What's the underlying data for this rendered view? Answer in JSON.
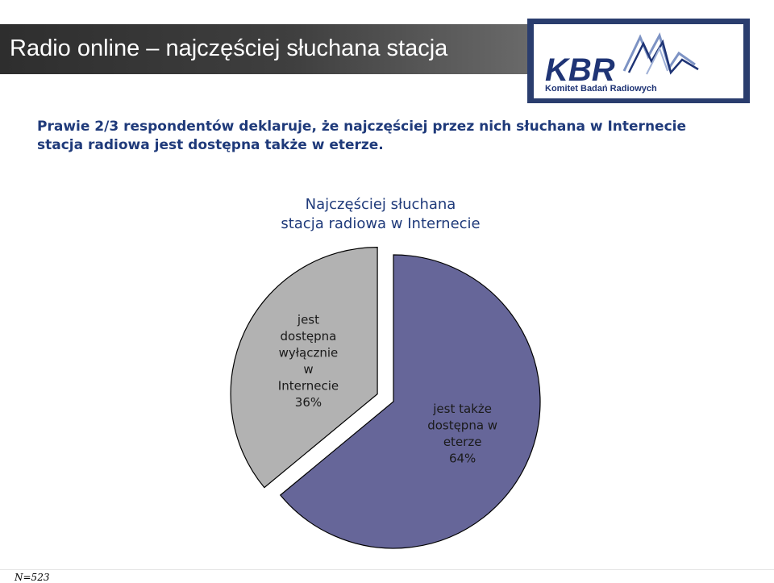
{
  "header": {
    "title": "Radio online – najczęściej słuchana stacja"
  },
  "logo": {
    "text": "KBR",
    "caption": "Komitet Badań Radiowych",
    "colors": {
      "frame": "#2a3d6e",
      "text": "#1f3475",
      "wave": "#7d93c4"
    }
  },
  "subtitle": "Prawie 2/3 respondentów deklaruje, że najczęściej przez nich słuchana w Internecie stacja radiowa jest dostępna także w eterze.",
  "footnote": "N=523",
  "chart_data": {
    "type": "pie",
    "title": [
      "Najczęściej słuchana",
      "stacja radiowa w Internecie"
    ],
    "slices": [
      {
        "label_lines": [
          "jest",
          "dostępna",
          "wyłącznie",
          "w",
          "Internecie"
        ],
        "value": 36,
        "value_label": "36%",
        "color": "#b2b2b2",
        "exploded": true
      },
      {
        "label_lines": [
          "jest także",
          "dostępna w",
          "eterze"
        ],
        "value": 64,
        "value_label": "64%",
        "color": "#666699",
        "exploded": false
      }
    ]
  }
}
